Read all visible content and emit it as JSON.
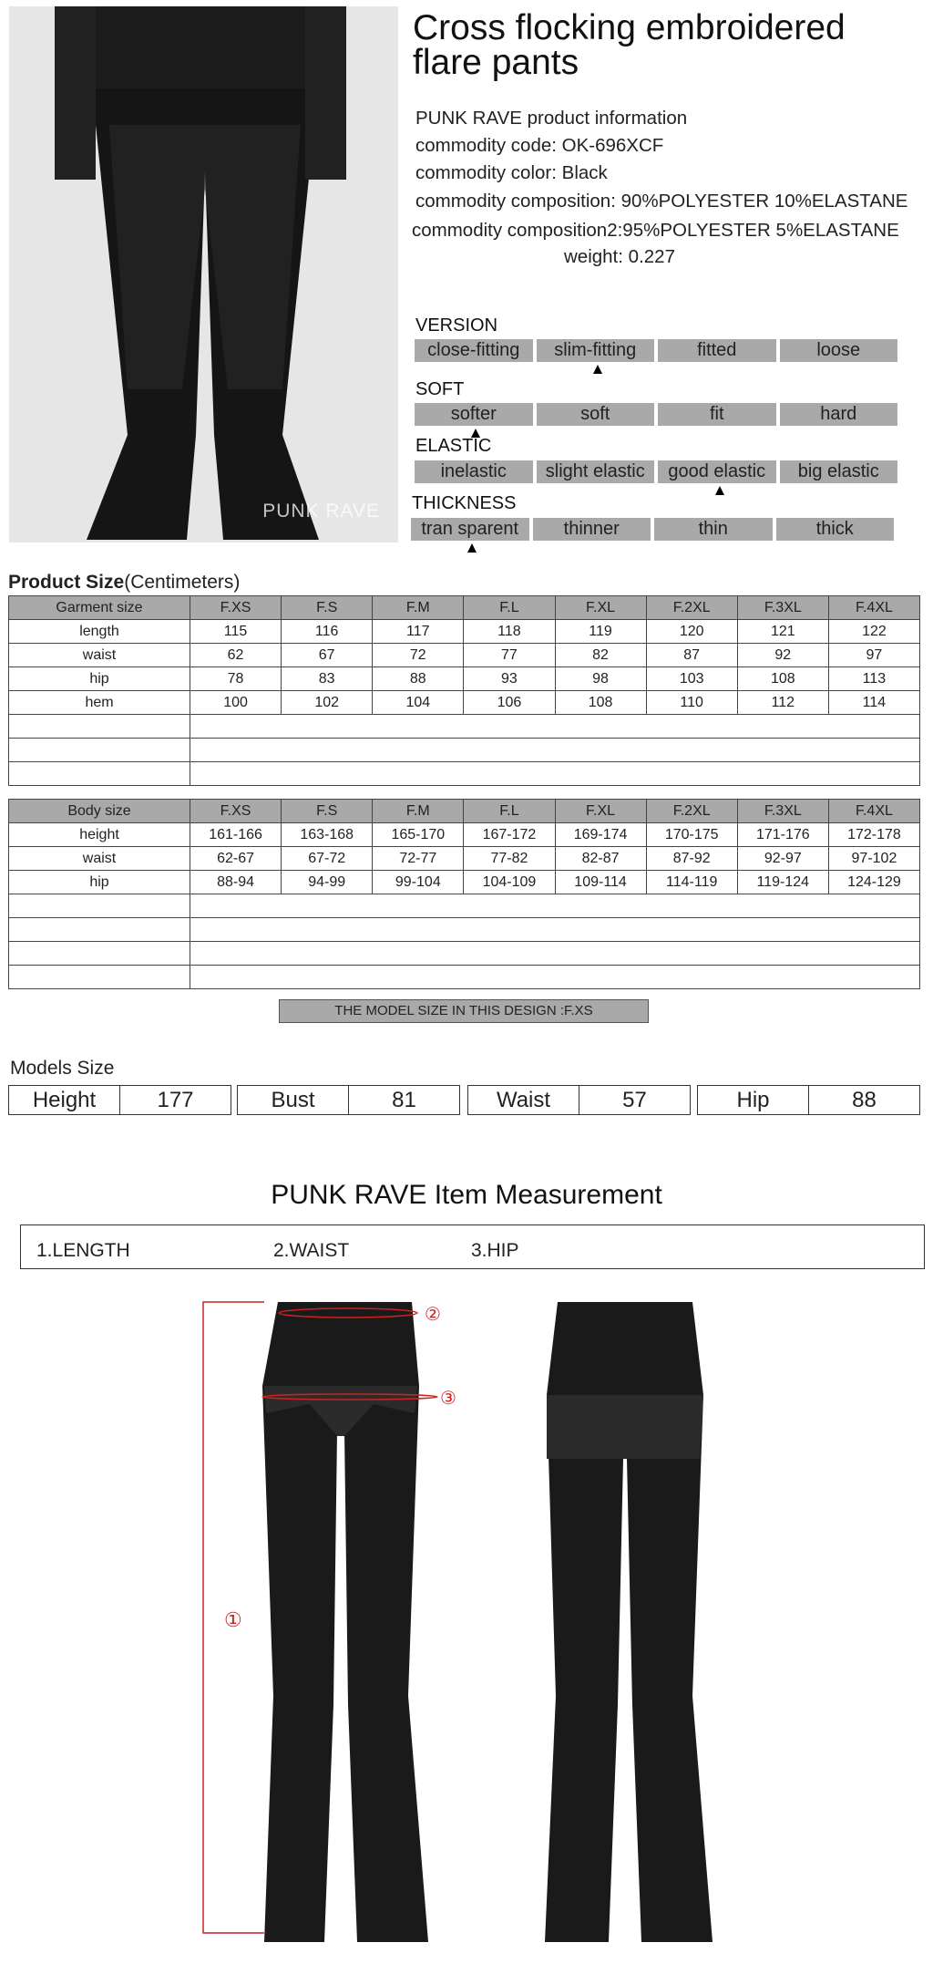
{
  "product": {
    "title": "Cross flocking embroidered flare pants",
    "watermark": "PUNK RAVE",
    "info_heading": "PUNK RAVE product information",
    "code_label": "commodity code:",
    "code": "OK-696XCF",
    "color_label": "commodity color:",
    "color": "Black",
    "composition_label": "commodity composition:",
    "composition": "90%POLYESTER 10%ELASTANE",
    "composition2_label": "commodity composition2:",
    "composition2": "95%POLYESTER 5%ELASTANE",
    "weight_label": "weight:",
    "weight": "0.227"
  },
  "attributes": [
    {
      "label": "VERSION",
      "options": [
        "close-fitting",
        "slim-fitting",
        "fitted",
        "loose"
      ],
      "selected": 1
    },
    {
      "label": "SOFT",
      "options": [
        "softer",
        "soft",
        "fit",
        "hard"
      ],
      "selected": 0
    },
    {
      "label": "ELASTIC",
      "options": [
        "inelastic",
        "slight elastic",
        "good elastic",
        "big elastic"
      ],
      "selected": 2
    },
    {
      "label": "THICKNESS",
      "options": [
        "tran sparent",
        "thinner",
        "thin",
        "thick"
      ],
      "selected": 0
    }
  ],
  "product_size": {
    "heading": "Product Size",
    "unit": "(Centimeters)",
    "header": [
      "Garment size",
      "F.XS",
      "F.S",
      "F.M",
      "F.L",
      "F.XL",
      "F.2XL",
      "F.3XL",
      "F.4XL"
    ],
    "rows": [
      [
        "length",
        "115",
        "116",
        "117",
        "118",
        "119",
        "120",
        "121",
        "122"
      ],
      [
        "waist",
        "62",
        "67",
        "72",
        "77",
        "82",
        "87",
        "92",
        "97"
      ],
      [
        "hip",
        "78",
        "83",
        "88",
        "93",
        "98",
        "103",
        "108",
        "113"
      ],
      [
        "hem",
        "100",
        "102",
        "104",
        "106",
        "108",
        "110",
        "112",
        "114"
      ]
    ]
  },
  "body_size": {
    "header": [
      "Body size",
      "F.XS",
      "F.S",
      "F.M",
      "F.L",
      "F.XL",
      "F.2XL",
      "F.3XL",
      "F.4XL"
    ],
    "rows": [
      [
        "height",
        "161-166",
        "163-168",
        "165-170",
        "167-172",
        "169-174",
        "170-175",
        "171-176",
        "172-178"
      ],
      [
        "waist",
        "62-67",
        "67-72",
        "72-77",
        "77-82",
        "82-87",
        "87-92",
        "92-97",
        "97-102"
      ],
      [
        "hip",
        "88-94",
        "94-99",
        "99-104",
        "104-109",
        "109-114",
        "114-119",
        "119-124",
        "124-129"
      ]
    ]
  },
  "model_size_banner": "THE MODEL SIZE IN THIS DESIGN :F.XS",
  "models": {
    "label": "Models Size",
    "items": [
      {
        "label": "Height",
        "value": "177"
      },
      {
        "label": "Bust",
        "value": "81"
      },
      {
        "label": "Waist",
        "value": "57"
      },
      {
        "label": "Hip",
        "value": "88"
      }
    ]
  },
  "measurement": {
    "title": "PUNK RAVE Item  Measurement",
    "items": [
      "1.LENGTH",
      "2.WAIST",
      "3.HIP"
    ],
    "markers": [
      "①",
      "②",
      "③"
    ]
  },
  "colors": {
    "bar": "#a9a9a9",
    "annotation": "#cc2222"
  }
}
